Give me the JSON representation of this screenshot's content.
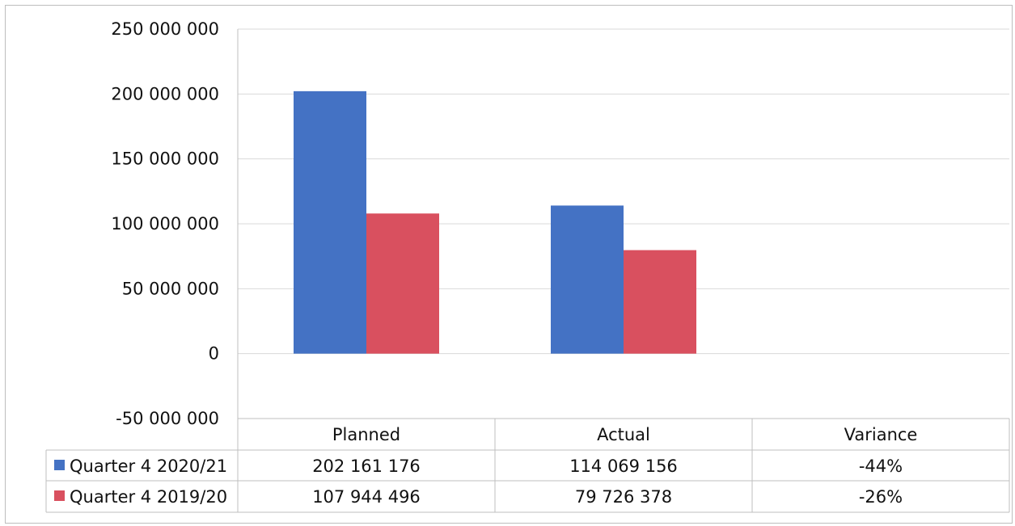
{
  "chart_data": {
    "type": "bar",
    "categories": [
      "Planned",
      "Actual",
      "Variance"
    ],
    "series": [
      {
        "name": "Quarter 4 2020/21",
        "values": [
          202161176,
          114069156,
          null
        ],
        "table_values": [
          "202 161 176",
          "114 069 156",
          "-44%"
        ]
      },
      {
        "name": "Quarter 4 2019/20",
        "values": [
          107944496,
          79726378,
          null
        ],
        "table_values": [
          "107 944 496",
          "79 726 378",
          "-26%"
        ]
      }
    ],
    "legend_display": [
      "Quarter 4 2020/21",
      "Quarter 4 2019/20"
    ],
    "ylim": [
      -50000000,
      250000000
    ],
    "y_ticks": [
      250000000,
      200000000,
      150000000,
      100000000,
      50000000,
      0,
      -50000000
    ],
    "y_tick_labels": [
      "250 000 000",
      "200 000 000",
      "150 000 000",
      "100 000 000",
      "50 000 000",
      "0",
      "-50 000 000"
    ],
    "title": "",
    "xlabel": "",
    "ylabel": "",
    "grid": true,
    "legend": "data-table"
  },
  "colors": {
    "series1": "#4472C4",
    "series2": "#D9505F",
    "grid": "#d9d9d9",
    "axis": "#bfbfbf"
  }
}
